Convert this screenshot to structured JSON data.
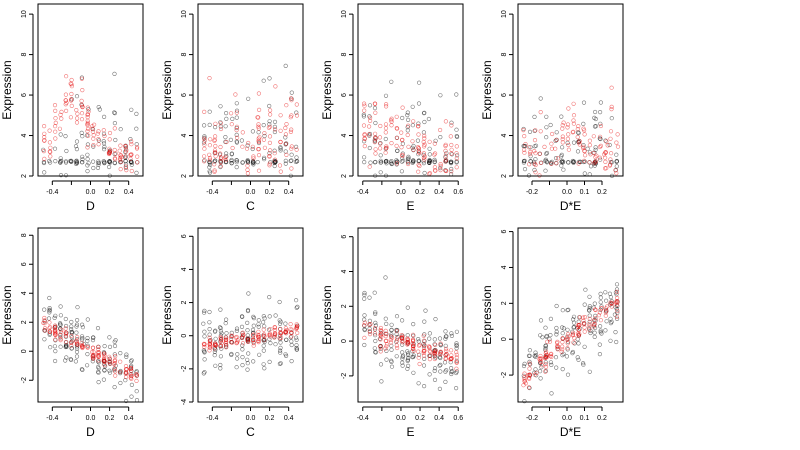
{
  "figure": {
    "ylabel": "Expression",
    "point_colors": [
      "#000000",
      "#e60000"
    ]
  },
  "chart_data": [
    {
      "type": "scatter",
      "panel": 1,
      "xlabel": "D",
      "ylabel": "Expression",
      "xlim": [
        -0.55,
        0.55
      ],
      "ylim": [
        2,
        10.5
      ],
      "xticks": [
        -0.4,
        -0.2,
        0.0,
        0.2,
        0.4
      ],
      "xticklabels": [
        "-0.4",
        "",
        "0.0",
        "0.2",
        "0.4"
      ],
      "yticks": [
        2,
        4,
        6,
        8,
        10
      ],
      "series": [
        {
          "color": "#000000",
          "trend": [
            [
              -0.45,
              2.7
            ],
            [
              0.05,
              2.7
            ],
            [
              0.5,
              2.7
            ]
          ],
          "spread": 1.8,
          "dense_bottom": 2.7
        },
        {
          "color": "#e60000",
          "trend": [
            [
              -0.45,
              3.5
            ],
            [
              -0.25,
              5.8
            ],
            [
              -0.1,
              5.5
            ],
            [
              0.05,
              4.0
            ],
            [
              0.2,
              3.2
            ],
            [
              0.5,
              2.8
            ]
          ],
          "spread": 0.5
        }
      ]
    },
    {
      "type": "scatter",
      "panel": 2,
      "xlabel": "C",
      "ylabel": "Expression",
      "xlim": [
        -0.55,
        0.55
      ],
      "ylim": [
        2,
        10.5
      ],
      "xticks": [
        -0.4,
        -0.2,
        0.0,
        0.2,
        0.4
      ],
      "xticklabels": [
        "-0.4",
        "",
        "0.0",
        "0.2",
        "0.4"
      ],
      "yticks": [
        2,
        4,
        6,
        8,
        10
      ],
      "series": [
        {
          "color": "#000000",
          "trend": [
            [
              -0.5,
              3.3
            ],
            [
              0.5,
              3.4
            ]
          ],
          "spread": 1.6,
          "dense_bottom": 2.7
        },
        {
          "color": "#e60000",
          "trend": [
            [
              -0.5,
              3.5
            ],
            [
              0.5,
              3.8
            ]
          ],
          "spread": 1.1
        }
      ]
    },
    {
      "type": "scatter",
      "panel": 3,
      "xlabel": "E",
      "ylabel": "Expression",
      "xlim": [
        -0.45,
        0.65
      ],
      "ylim": [
        2,
        10.5
      ],
      "xticks": [
        -0.4,
        -0.2,
        0.0,
        0.2,
        0.4,
        0.6
      ],
      "xticklabels": [
        "-0.4",
        "",
        "0.0",
        "0.2",
        "0.4",
        "0.6"
      ],
      "yticks": [
        2,
        4,
        6,
        8,
        10
      ],
      "series": [
        {
          "color": "#000000",
          "trend": [
            [
              -0.4,
              3.4
            ],
            [
              0.6,
              3.0
            ]
          ],
          "spread": 1.5,
          "dense_bottom": 2.7
        },
        {
          "color": "#e60000",
          "trend": [
            [
              -0.4,
              4.5
            ],
            [
              -0.1,
              4.3
            ],
            [
              0.2,
              3.2
            ],
            [
              0.6,
              2.9
            ]
          ],
          "spread": 0.9
        }
      ]
    },
    {
      "type": "scatter",
      "panel": 4,
      "xlabel": "D*E",
      "ylabel": "Expression",
      "xlim": [
        -0.28,
        0.32
      ],
      "ylim": [
        2,
        10.5
      ],
      "xticks": [
        -0.2,
        -0.1,
        0.0,
        0.1,
        0.2
      ],
      "xticklabels": [
        "-0.2",
        "",
        "0.0",
        "0.1",
        "0.2"
      ],
      "yticks": [
        2,
        4,
        6,
        8,
        10
      ],
      "series": [
        {
          "color": "#000000",
          "trend": [
            [
              -0.25,
              2.8
            ],
            [
              0.0,
              3.5
            ],
            [
              0.3,
              2.8
            ]
          ],
          "spread": 1.3,
          "dense_bottom": 2.7
        },
        {
          "color": "#e60000",
          "trend": [
            [
              -0.25,
              3.0
            ],
            [
              -0.05,
              3.3
            ],
            [
              0.0,
              5.0
            ],
            [
              0.1,
              3.0
            ],
            [
              0.3,
              3.4
            ]
          ],
          "spread": 0.8
        }
      ]
    },
    {
      "type": "scatter",
      "panel": 5,
      "xlabel": "D",
      "ylabel": "Expression",
      "xlim": [
        -0.55,
        0.55
      ],
      "ylim": [
        -3.5,
        8.5
      ],
      "xticks": [
        -0.4,
        -0.2,
        0.0,
        0.2,
        0.4
      ],
      "xticklabels": [
        "-0.4",
        "",
        "0.0",
        "0.2",
        "0.4"
      ],
      "yticks": [
        -2,
        0,
        2,
        4,
        6,
        8
      ],
      "series": [
        {
          "color": "#000000",
          "trend": [
            [
              -0.5,
              2.0
            ],
            [
              0.0,
              0.0
            ],
            [
              0.5,
              -2.0
            ]
          ],
          "spread": 1.0
        },
        {
          "color": "#e60000",
          "trend": [
            [
              -0.5,
              1.8
            ],
            [
              0.0,
              0.0
            ],
            [
              0.5,
              -1.8
            ]
          ],
          "spread": 0.25
        }
      ]
    },
    {
      "type": "scatter",
      "panel": 6,
      "xlabel": "C",
      "ylabel": "Expression",
      "xlim": [
        -0.55,
        0.55
      ],
      "ylim": [
        -4,
        6.5
      ],
      "xticks": [
        -0.4,
        -0.2,
        0.0,
        0.2,
        0.4
      ],
      "xticklabels": [
        "-0.4",
        "",
        "0.0",
        "0.2",
        "0.4"
      ],
      "yticks": [
        -4,
        -2,
        0,
        2,
        4,
        6
      ],
      "series": [
        {
          "color": "#000000",
          "trend": [
            [
              -0.5,
              -0.3
            ],
            [
              0.5,
              0.3
            ]
          ],
          "spread": 1.0
        },
        {
          "color": "#e60000",
          "trend": [
            [
              -0.5,
              -0.6
            ],
            [
              0.5,
              0.4
            ]
          ],
          "spread": 0.2
        }
      ]
    },
    {
      "type": "scatter",
      "panel": 7,
      "xlabel": "E",
      "ylabel": "Expression",
      "xlim": [
        -0.45,
        0.65
      ],
      "ylim": [
        -3.5,
        6.5
      ],
      "xticks": [
        -0.4,
        -0.2,
        0.0,
        0.2,
        0.4,
        0.6
      ],
      "xticklabels": [
        "-0.4",
        "",
        "0.0",
        "0.2",
        "0.4",
        "0.6"
      ],
      "yticks": [
        -2,
        0,
        2,
        4,
        6
      ],
      "series": [
        {
          "color": "#000000",
          "trend": [
            [
              -0.4,
              1.0
            ],
            [
              0.0,
              0.0
            ],
            [
              0.6,
              -1.0
            ]
          ],
          "spread": 1.0
        },
        {
          "color": "#e60000",
          "trend": [
            [
              -0.4,
              0.6
            ],
            [
              0.0,
              0.0
            ],
            [
              0.6,
              -1.2
            ]
          ],
          "spread": 0.3
        }
      ]
    },
    {
      "type": "scatter",
      "panel": 8,
      "xlabel": "D*E",
      "ylabel": "Expression",
      "xlim": [
        -0.28,
        0.32
      ],
      "ylim": [
        -3.5,
        6.2
      ],
      "xticks": [
        -0.2,
        -0.1,
        0.0,
        0.1,
        0.2
      ],
      "xticklabels": [
        "-0.2",
        "",
        "0.0",
        "0.1",
        "0.2"
      ],
      "yticks": [
        -2,
        0,
        2,
        4,
        6
      ],
      "series": [
        {
          "color": "#000000",
          "trend": [
            [
              -0.25,
              -2.0
            ],
            [
              0.0,
              0.0
            ],
            [
              0.3,
              2.0
            ]
          ],
          "spread": 1.0
        },
        {
          "color": "#e60000",
          "trend": [
            [
              -0.25,
              -2.2
            ],
            [
              0.0,
              0.0
            ],
            [
              0.3,
              2.2
            ]
          ],
          "spread": 0.3
        }
      ]
    }
  ]
}
